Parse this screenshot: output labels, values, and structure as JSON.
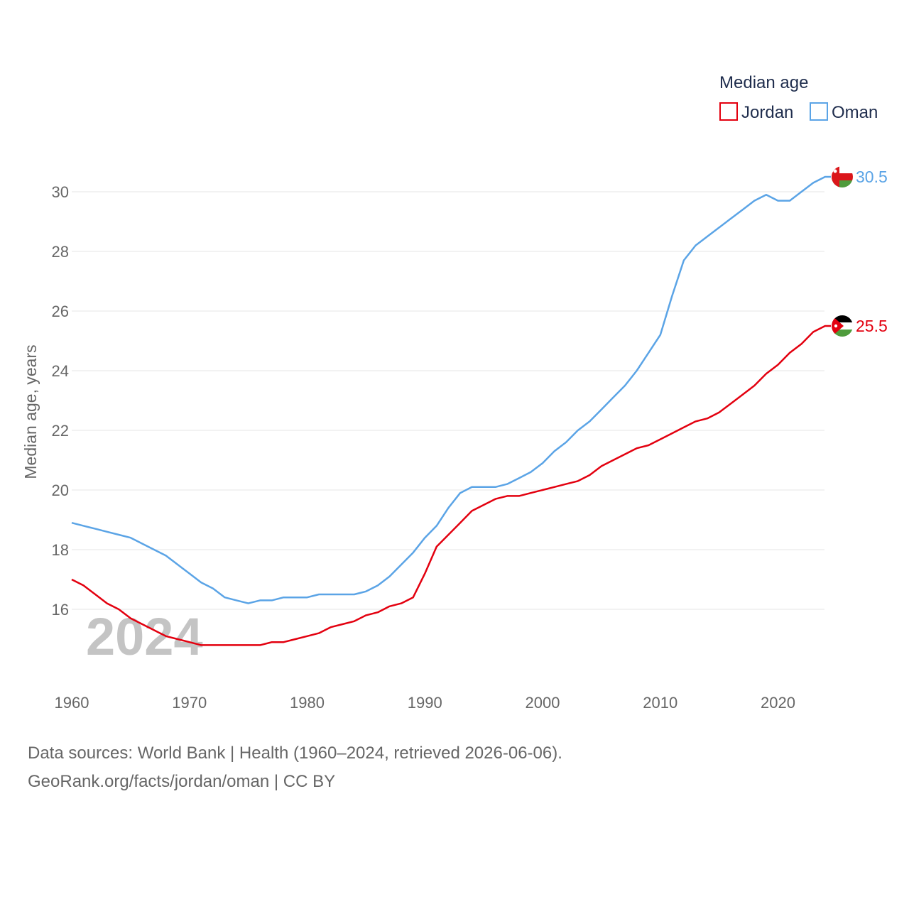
{
  "chart_data": {
    "type": "line",
    "title": "",
    "xlabel": "",
    "ylabel": "Median age, years",
    "xlim": [
      1960,
      2025
    ],
    "ylim": [
      14,
      31.5
    ],
    "x_ticks": [
      1960,
      1970,
      1980,
      1990,
      2000,
      2010,
      2020
    ],
    "y_ticks": [
      16,
      18,
      20,
      22,
      24,
      26,
      28,
      30
    ],
    "grid": true,
    "legend_title": "Median age",
    "legend_position": "top-right",
    "year_label": "2024",
    "x": [
      1960,
      1961,
      1962,
      1963,
      1964,
      1965,
      1966,
      1967,
      1968,
      1969,
      1970,
      1971,
      1972,
      1973,
      1974,
      1975,
      1976,
      1977,
      1978,
      1979,
      1980,
      1981,
      1982,
      1983,
      1984,
      1985,
      1986,
      1987,
      1988,
      1989,
      1990,
      1991,
      1992,
      1993,
      1994,
      1995,
      1996,
      1997,
      1998,
      1999,
      2000,
      2001,
      2002,
      2003,
      2004,
      2005,
      2006,
      2007,
      2008,
      2009,
      2010,
      2011,
      2012,
      2013,
      2014,
      2015,
      2016,
      2017,
      2018,
      2019,
      2020,
      2021,
      2022,
      2023,
      2024
    ],
    "series": [
      {
        "name": "Jordan",
        "color": "#e3000f",
        "end_label": "25.5",
        "values": [
          17.0,
          16.8,
          16.5,
          16.2,
          16.0,
          15.7,
          15.5,
          15.3,
          15.1,
          15.0,
          14.9,
          14.8,
          14.8,
          14.8,
          14.8,
          14.8,
          14.8,
          14.9,
          14.9,
          15.0,
          15.1,
          15.2,
          15.4,
          15.5,
          15.6,
          15.8,
          15.9,
          16.1,
          16.2,
          16.4,
          17.2,
          18.1,
          18.5,
          18.9,
          19.3,
          19.5,
          19.7,
          19.8,
          19.8,
          19.9,
          20.0,
          20.1,
          20.2,
          20.3,
          20.5,
          20.8,
          21.0,
          21.2,
          21.4,
          21.5,
          21.7,
          21.9,
          22.1,
          22.3,
          22.4,
          22.6,
          22.9,
          23.2,
          23.5,
          23.9,
          24.2,
          24.6,
          24.9,
          25.3,
          25.5
        ]
      },
      {
        "name": "Oman",
        "color": "#5ba4e6",
        "end_label": "30.5",
        "values": [
          18.9,
          18.8,
          18.7,
          18.6,
          18.5,
          18.4,
          18.2,
          18.0,
          17.8,
          17.5,
          17.2,
          16.9,
          16.7,
          16.4,
          16.3,
          16.2,
          16.3,
          16.3,
          16.4,
          16.4,
          16.4,
          16.5,
          16.5,
          16.5,
          16.5,
          16.6,
          16.8,
          17.1,
          17.5,
          17.9,
          18.4,
          18.8,
          19.4,
          19.9,
          20.1,
          20.1,
          20.1,
          20.2,
          20.4,
          20.6,
          20.9,
          21.3,
          21.6,
          22.0,
          22.3,
          22.7,
          23.1,
          23.5,
          24.0,
          24.6,
          25.2,
          26.5,
          27.7,
          28.2,
          28.5,
          28.8,
          29.1,
          29.4,
          29.7,
          29.9,
          29.7,
          29.7,
          30.0,
          30.3,
          30.5
        ]
      }
    ]
  },
  "footer": {
    "source_line": "Data sources: World Bank | Health (1960–2024, retrieved 2026-06-06).",
    "url_line": "GeoRank.org/facts/jordan/oman | CC BY"
  },
  "colors": {
    "grid": "#e6e6e6",
    "text": "#666666",
    "legend_text": "#1f2d4d",
    "flag_jordan_black": "#000000",
    "flag_jordan_white": "#ffffff",
    "flag_jordan_green": "#4f9c3c",
    "flag_jordan_red": "#e3000f",
    "flag_oman_red": "#db161b",
    "flag_oman_white": "#ffffff",
    "flag_oman_green": "#4f9c3c"
  },
  "icons": {
    "jordan_flag": "jordan-flag-icon",
    "oman_flag": "oman-flag-icon"
  }
}
